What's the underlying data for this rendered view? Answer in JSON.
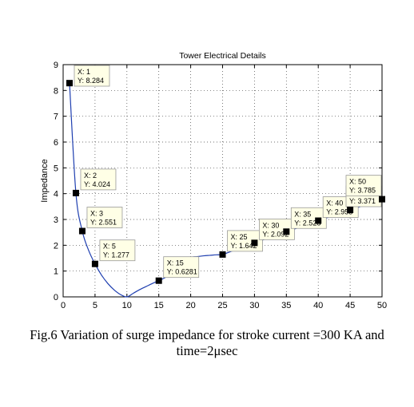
{
  "chart_data": {
    "type": "line",
    "title": "Tower Electrical Details",
    "xlabel": "",
    "ylabel": "Impedance",
    "xlim": [
      0,
      50
    ],
    "ylim": [
      0,
      9
    ],
    "xticks": [
      0,
      5,
      10,
      15,
      20,
      25,
      30,
      35,
      40,
      45,
      50
    ],
    "yticks": [
      0,
      1,
      2,
      3,
      4,
      5,
      6,
      7,
      8,
      9
    ],
    "grid": true,
    "line_color": "#1f3fb0",
    "curve": {
      "x": [
        1,
        2,
        3,
        4,
        5,
        6,
        7,
        8,
        9,
        10,
        11,
        12,
        13,
        14,
        15,
        16,
        17,
        18,
        19,
        20,
        21,
        22,
        23,
        24,
        25,
        26,
        27,
        28,
        29,
        30,
        31,
        32,
        33,
        34,
        35,
        36,
        37,
        38,
        39,
        40,
        41,
        42,
        43,
        44,
        45,
        46,
        47,
        48,
        49,
        50
      ],
      "y": [
        8.284,
        4.024,
        2.551,
        1.8,
        1.277,
        0.85,
        0.52,
        0.27,
        0.09,
        0.0,
        0.14,
        0.28,
        0.4,
        0.52,
        0.628,
        0.75,
        0.94,
        1.13,
        1.33,
        1.52,
        1.56,
        1.59,
        1.61,
        1.63,
        1.642,
        1.73,
        1.82,
        1.91,
        2.0,
        2.092,
        2.18,
        2.27,
        2.36,
        2.44,
        2.528,
        2.61,
        2.69,
        2.77,
        2.86,
        2.953,
        3.04,
        3.12,
        3.21,
        3.29,
        3.371,
        3.45,
        3.53,
        3.62,
        3.7,
        3.785
      ]
    },
    "datatips": [
      {
        "x": 1,
        "y": 8.284,
        "xtext": "X: 1",
        "ytext": "Y: 8.284"
      },
      {
        "x": 2,
        "y": 4.024,
        "xtext": "X: 2",
        "ytext": "Y: 4.024"
      },
      {
        "x": 3,
        "y": 2.551,
        "xtext": "X: 3",
        "ytext": "Y: 2.551"
      },
      {
        "x": 5,
        "y": 1.277,
        "xtext": "X: 5",
        "ytext": "Y: 1.277"
      },
      {
        "x": 15,
        "y": 0.6281,
        "xtext": "X: 15",
        "ytext": "Y: 0.6281"
      },
      {
        "x": 25,
        "y": 1.642,
        "xtext": "X: 25",
        "ytext": "Y: 1.642"
      },
      {
        "x": 30,
        "y": 2.092,
        "xtext": "X: 30",
        "ytext": "Y: 2.092"
      },
      {
        "x": 35,
        "y": 2.528,
        "xtext": "X: 35",
        "ytext": "Y: 2.528"
      },
      {
        "x": 40,
        "y": 2.953,
        "xtext": "X: 40",
        "ytext": "Y: 2.953"
      },
      {
        "x": 45,
        "y": 3.371,
        "xtext": "X: 45",
        "ytext": "Y: 3.371"
      },
      {
        "x": 50,
        "y": 3.785,
        "xtext": "X: 50",
        "ytext": "Y: 3.785"
      }
    ]
  },
  "caption": {
    "line1": "Fig.6 Variation of surge impedance for stroke current =300 KA and",
    "line2": "time=2μsec"
  }
}
